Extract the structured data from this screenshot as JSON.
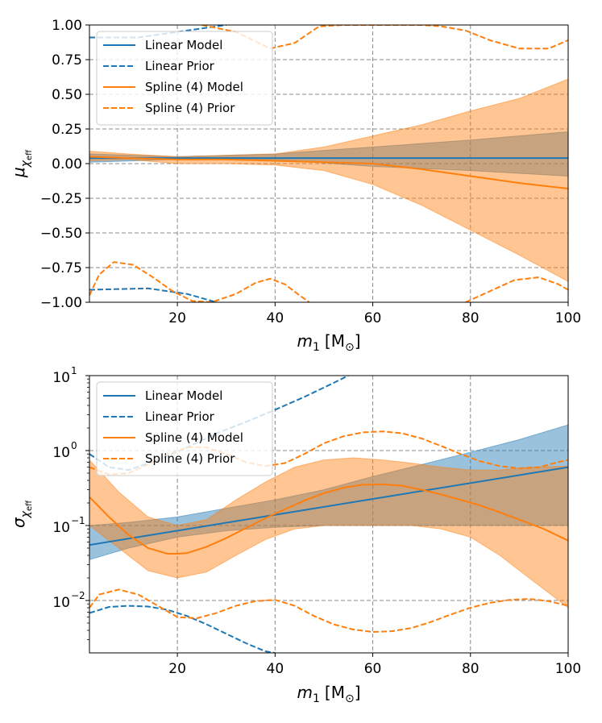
{
  "chart_data": [
    {
      "id": "mu",
      "type": "line",
      "xlabel": "m",
      "xlabel_sub": "1",
      "xlabel_unit": "[M",
      "xlabel_unit_sub": "⊙",
      "xlabel_close": "]",
      "ylabel": "μ",
      "ylabel_sub": "χ",
      "ylabel_subsub": "eff",
      "xlim": [
        2,
        100
      ],
      "ylim": [
        -1.0,
        1.0
      ],
      "yscale": "linear",
      "xticks": [
        20,
        40,
        60,
        80,
        100
      ],
      "xtick_labels": [
        "20",
        "40",
        "60",
        "80",
        "100"
      ],
      "yticks": [
        -1.0,
        -0.75,
        -0.5,
        -0.25,
        0.0,
        0.25,
        0.5,
        0.75,
        1.0
      ],
      "ytick_labels": [
        "−1.00",
        "−0.75",
        "−0.50",
        "−0.25",
        "0.00",
        "0.25",
        "0.50",
        "0.75",
        "1.00"
      ],
      "grid": true,
      "legend_position": "top-left",
      "legend": [
        "Linear Model",
        "Linear Prior",
        "Spline (4) Model",
        "Spline (4) Prior"
      ],
      "series": [
        {
          "name": "Linear Model band",
          "kind": "band",
          "color": "#1f77b4",
          "x": [
            2,
            20,
            40,
            60,
            80,
            100
          ],
          "lower": [
            0.01,
            0.03,
            0.03,
            -0.02,
            -0.05,
            -0.09
          ],
          "upper": [
            0.07,
            0.05,
            0.07,
            0.12,
            0.17,
            0.23
          ]
        },
        {
          "name": "Spline (4) Model band",
          "kind": "band",
          "color": "#ff7f0e",
          "x": [
            2,
            10,
            20,
            30,
            40,
            50,
            60,
            70,
            80,
            90,
            100
          ],
          "lower": [
            0.02,
            0.03,
            0.0,
            0.0,
            -0.01,
            -0.05,
            -0.15,
            -0.3,
            -0.48,
            -0.66,
            -0.85
          ],
          "upper": [
            0.09,
            0.07,
            0.05,
            0.06,
            0.07,
            0.12,
            0.2,
            0.28,
            0.38,
            0.47,
            0.61
          ]
        },
        {
          "name": "Linear Model",
          "kind": "line",
          "style": "solid",
          "color": "#1f77b4",
          "x": [
            2,
            100
          ],
          "y": [
            0.04,
            0.04
          ]
        },
        {
          "name": "Spline (4) Model",
          "kind": "line",
          "style": "solid",
          "color": "#ff7f0e",
          "x": [
            2,
            10,
            20,
            30,
            40,
            50,
            60,
            70,
            80,
            90,
            100
          ],
          "y": [
            0.05,
            0.04,
            0.03,
            0.03,
            0.02,
            0.01,
            0.0,
            -0.04,
            -0.09,
            -0.14,
            -0.18
          ]
        },
        {
          "name": "Linear Prior upper",
          "kind": "line",
          "style": "dashed",
          "color": "#1f77b4",
          "x": [
            2,
            12,
            22,
            30
          ],
          "y": [
            0.91,
            0.91,
            0.96,
            1.0
          ]
        },
        {
          "name": "Linear Prior lower",
          "kind": "line",
          "style": "dashed",
          "color": "#1f77b4",
          "x": [
            2,
            14,
            22,
            28
          ],
          "y": [
            -0.91,
            -0.9,
            -0.94,
            -1.0
          ]
        },
        {
          "name": "Spline (4) Prior upper",
          "kind": "line",
          "style": "dashed",
          "color": "#ff7f0e",
          "x": [
            25,
            32,
            39,
            44,
            49,
            54,
            60,
            66,
            70,
            74,
            79,
            84,
            90,
            96,
            100
          ],
          "y": [
            1.0,
            0.95,
            0.83,
            0.87,
            0.99,
            1.0,
            1.0,
            1.0,
            1.0,
            0.99,
            0.96,
            0.89,
            0.83,
            0.83,
            0.89
          ]
        },
        {
          "name": "Spline (4) Prior lower",
          "kind": "line",
          "style": "dashed",
          "color": "#ff7f0e",
          "x": [
            2,
            4,
            7,
            11,
            15,
            19,
            23,
            27,
            32,
            36,
            39,
            42,
            45,
            47
          ],
          "y": [
            -0.95,
            -0.8,
            -0.71,
            -0.73,
            -0.82,
            -0.92,
            -0.99,
            -1.0,
            -0.94,
            -0.86,
            -0.83,
            -0.87,
            -0.95,
            -1.0
          ]
        },
        {
          "name": "Spline (4) Prior lower 2",
          "kind": "line",
          "style": "dashed",
          "color": "#ff7f0e",
          "x": [
            79,
            84,
            89,
            94,
            98,
            100
          ],
          "y": [
            -1.0,
            -0.92,
            -0.84,
            -0.82,
            -0.87,
            -0.91
          ]
        }
      ]
    },
    {
      "id": "sigma",
      "type": "line",
      "xlabel": "m",
      "xlabel_sub": "1",
      "xlabel_unit": "[M",
      "xlabel_unit_sub": "⊙",
      "xlabel_close": "]",
      "ylabel": "σ",
      "ylabel_sub": "χ",
      "ylabel_subsub": "eff",
      "xlim": [
        2,
        100
      ],
      "ylim": [
        0.002,
        10
      ],
      "yscale": "log",
      "xticks": [
        20,
        40,
        60,
        80,
        100
      ],
      "xtick_labels": [
        "20",
        "40",
        "60",
        "80",
        "100"
      ],
      "yticks": [
        0.01,
        0.1,
        1,
        10
      ],
      "ytick_base": "10",
      "ytick_exps": [
        "−2",
        "−1",
        "0",
        "1"
      ],
      "grid": true,
      "legend_position": "top-left",
      "legend": [
        "Linear Model",
        "Linear Prior",
        "Spline (4) Model",
        "Spline (4) Prior"
      ],
      "series": [
        {
          "name": "Linear Model band",
          "kind": "band",
          "color": "#1f77b4",
          "x": [
            2,
            10,
            20,
            30,
            40,
            50,
            60,
            70,
            80,
            90,
            100
          ],
          "lower": [
            0.035,
            0.05,
            0.07,
            0.085,
            0.095,
            0.1,
            0.1,
            0.1,
            0.1,
            0.1,
            0.1
          ],
          "upper": [
            0.1,
            0.11,
            0.13,
            0.17,
            0.22,
            0.3,
            0.45,
            0.65,
            0.95,
            1.4,
            2.2
          ]
        },
        {
          "name": "Spline (4) Model band",
          "kind": "band",
          "color": "#ff7f0e",
          "x": [
            2,
            8,
            14,
            20,
            26,
            32,
            38,
            44,
            50,
            56,
            62,
            68,
            74,
            80,
            86,
            92,
            100
          ],
          "lower": [
            0.1,
            0.05,
            0.025,
            0.02,
            0.024,
            0.04,
            0.065,
            0.09,
            0.1,
            0.1,
            0.1,
            0.1,
            0.09,
            0.07,
            0.04,
            0.02,
            0.008
          ],
          "upper": [
            0.75,
            0.28,
            0.13,
            0.1,
            0.12,
            0.22,
            0.38,
            0.6,
            0.75,
            0.8,
            0.75,
            0.68,
            0.6,
            0.55,
            0.55,
            0.6,
            0.62
          ]
        },
        {
          "name": "Linear Model",
          "kind": "line",
          "style": "solid",
          "color": "#1f77b4",
          "x": [
            2,
            100
          ],
          "y": [
            0.055,
            0.6
          ]
        },
        {
          "name": "Spline (4) Model",
          "kind": "line",
          "style": "solid",
          "color": "#ff7f0e",
          "x": [
            2,
            6,
            10,
            14,
            18,
            20,
            22,
            26,
            30,
            34,
            38,
            42,
            46,
            50,
            54,
            58,
            62,
            66,
            70,
            74,
            78,
            82,
            86,
            90,
            95,
            100
          ],
          "y": [
            0.24,
            0.13,
            0.075,
            0.05,
            0.042,
            0.042,
            0.043,
            0.052,
            0.068,
            0.092,
            0.125,
            0.165,
            0.215,
            0.27,
            0.32,
            0.35,
            0.355,
            0.34,
            0.3,
            0.26,
            0.22,
            0.185,
            0.15,
            0.12,
            0.09,
            0.063
          ]
        },
        {
          "name": "Linear Prior upper",
          "kind": "line",
          "style": "dashed",
          "color": "#1f77b4",
          "x": [
            2,
            6,
            10,
            16,
            22,
            28,
            34,
            40,
            46,
            52,
            55
          ],
          "y": [
            0.9,
            0.6,
            0.55,
            0.75,
            1.1,
            1.7,
            2.4,
            3.5,
            5.2,
            8.0,
            10.0
          ]
        },
        {
          "name": "Linear Prior lower",
          "kind": "line",
          "style": "dashed",
          "color": "#1f77b4",
          "x": [
            2,
            6,
            10,
            14,
            18,
            22,
            26,
            30,
            34,
            38,
            40
          ],
          "y": [
            0.0068,
            0.0082,
            0.0085,
            0.0083,
            0.0075,
            0.0062,
            0.0048,
            0.0036,
            0.0027,
            0.0021,
            0.002
          ]
        },
        {
          "name": "Spline (4) Prior upper",
          "kind": "line",
          "style": "dashed",
          "color": "#ff7f0e",
          "x": [
            2,
            6,
            10,
            14,
            18,
            22,
            26,
            30,
            34,
            38,
            42,
            46,
            50,
            54,
            58,
            62,
            66,
            70,
            74,
            78,
            82,
            86,
            90,
            94,
            98,
            100
          ],
          "y": [
            0.6,
            0.48,
            0.5,
            0.65,
            0.9,
            1.1,
            1.1,
            0.9,
            0.7,
            0.62,
            0.68,
            0.9,
            1.25,
            1.55,
            1.75,
            1.8,
            1.7,
            1.45,
            1.15,
            0.9,
            0.72,
            0.62,
            0.58,
            0.6,
            0.7,
            0.75
          ]
        },
        {
          "name": "Spline (4) Prior lower",
          "kind": "line",
          "style": "dashed",
          "color": "#ff7f0e",
          "x": [
            2,
            4,
            8,
            12,
            16,
            20,
            24,
            28,
            32,
            36,
            40,
            44,
            48,
            52,
            56,
            60,
            64,
            68,
            72,
            76,
            80,
            84,
            88,
            92,
            96,
            100
          ],
          "y": [
            0.008,
            0.012,
            0.014,
            0.012,
            0.0085,
            0.006,
            0.0058,
            0.0068,
            0.0085,
            0.0098,
            0.0102,
            0.0085,
            0.0062,
            0.0048,
            0.0041,
            0.0038,
            0.0039,
            0.0043,
            0.0052,
            0.0065,
            0.008,
            0.0093,
            0.0102,
            0.0105,
            0.0098,
            0.0085
          ]
        }
      ]
    }
  ]
}
